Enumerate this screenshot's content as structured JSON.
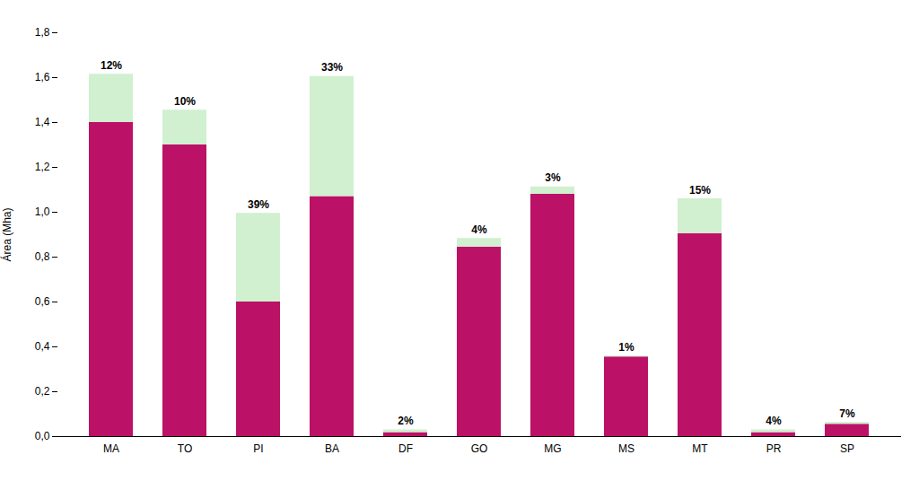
{
  "chart_data": {
    "type": "bar",
    "stacked": true,
    "ylabel": "Área (Mha)",
    "categories": [
      "MA",
      "TO",
      "PI",
      "BA",
      "DF",
      "GO",
      "MG",
      "MS",
      "MT",
      "PR",
      "SP"
    ],
    "series": [
      {
        "color": "#bb1166",
        "values": [
          1.4,
          1.3,
          0.6,
          1.07,
          0.018,
          0.845,
          1.08,
          0.355,
          0.905,
          0.018,
          0.055
        ]
      },
      {
        "color": "#d0f0d0",
        "values": [
          0.215,
          0.155,
          0.395,
          0.535,
          0.012,
          0.038,
          0.033,
          0.004,
          0.155,
          0.012,
          0.008
        ]
      }
    ],
    "annotations": [
      "12%",
      "10%",
      "39%",
      "33%",
      "2%",
      "4%",
      "3%",
      "1%",
      "15%",
      "4%",
      "7%"
    ],
    "ylim": [
      0,
      1.8
    ],
    "yticks": [
      {
        "value": 0.0,
        "label": "0,0"
      },
      {
        "value": 0.2,
        "label": "0,2"
      },
      {
        "value": 0.4,
        "label": "0,4"
      },
      {
        "value": 0.6,
        "label": "0,6"
      },
      {
        "value": 0.8,
        "label": "0,8"
      },
      {
        "value": 1.0,
        "label": "1,0"
      },
      {
        "value": 1.2,
        "label": "1,2"
      },
      {
        "value": 1.4,
        "label": "1,4"
      },
      {
        "value": 1.6,
        "label": "1,6"
      },
      {
        "value": 1.8,
        "label": "1,8"
      }
    ],
    "grid": false
  }
}
